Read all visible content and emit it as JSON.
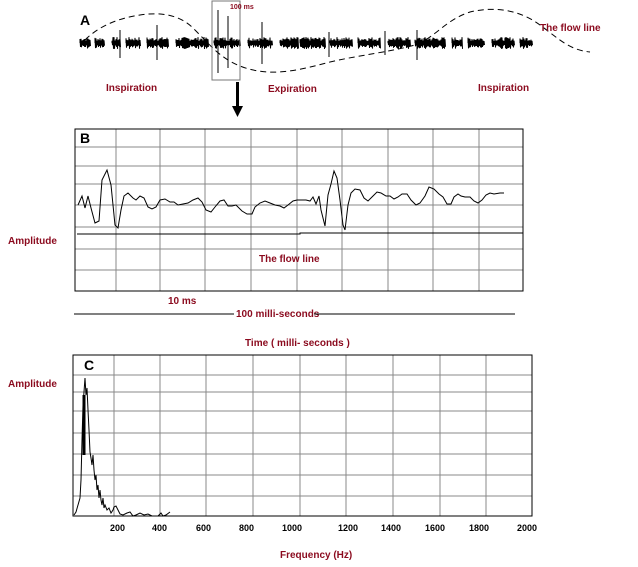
{
  "panel_a": {
    "letter": "A",
    "box_label": "100 ms",
    "flow_label": "The flow line",
    "phases": [
      "Inspiration",
      "Expiration",
      "Inspiration"
    ]
  },
  "panel_b": {
    "letter": "B",
    "ylabel": "Amplitude",
    "flow_label": "The flow line",
    "scale_small": "10 ms",
    "scale_large": "100 milli-seconds",
    "xlabel": "Time  ( milli- seconds )"
  },
  "panel_c": {
    "letter": "C",
    "ylabel": "Amplitude",
    "xlabel": "Frequency (Hz)",
    "xticks": [
      "200",
      "400",
      "600",
      "800",
      "1000",
      "1200",
      "1400",
      "1600",
      "1800",
      "2000"
    ]
  },
  "colors": {
    "label": "#8b0a1e",
    "grid": "#888888"
  }
}
